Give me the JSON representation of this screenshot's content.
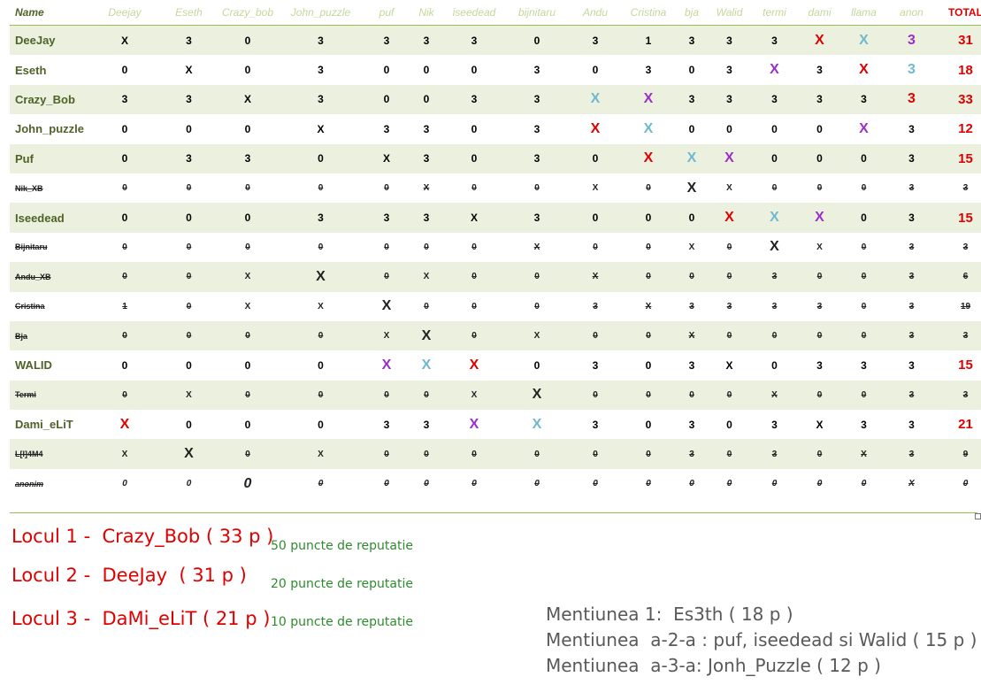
{
  "table": {
    "headers": [
      "Name",
      "Deejay",
      "Eseth",
      "Crazy_bob",
      "John_puzzle",
      "puf",
      "Nik",
      "iseedead",
      "bijnitaru",
      "Andu",
      "Cristina",
      "bja",
      "Walid",
      "termi",
      "dami",
      "llama",
      "anon",
      "TOTAL"
    ],
    "rows": [
      {
        "name": "DeeJay",
        "elim": false,
        "cells": [
          "X",
          "3",
          "0",
          "3",
          "3",
          "3",
          "3",
          "0",
          "3",
          "1",
          "3",
          "3",
          "3",
          "X",
          "X",
          "3"
        ],
        "colors": [
          "",
          "",
          "",
          "",
          "",
          "",
          "",
          "",
          "",
          "",
          "",
          "",
          "",
          "red",
          "teal",
          "purple"
        ],
        "total": "31"
      },
      {
        "name": "Eseth",
        "elim": false,
        "cells": [
          "0",
          "X",
          "0",
          "3",
          "0",
          "0",
          "0",
          "3",
          "0",
          "3",
          "0",
          "3",
          "X",
          "3",
          "X",
          "3"
        ],
        "colors": [
          "",
          "",
          "",
          "",
          "",
          "",
          "",
          "",
          "",
          "",
          "",
          "",
          "purple",
          "",
          "red",
          "teal"
        ],
        "total": "18"
      },
      {
        "name": "Crazy_Bob",
        "elim": false,
        "cells": [
          "3",
          "3",
          "X",
          "3",
          "0",
          "0",
          "3",
          "3",
          "X",
          "X",
          "3",
          "3",
          "3",
          "3",
          "3",
          "3"
        ],
        "colors": [
          "",
          "",
          "",
          "",
          "",
          "",
          "",
          "",
          "teal",
          "purple",
          "",
          "",
          "",
          "",
          "",
          "red"
        ],
        "total": "33"
      },
      {
        "name": "John_puzzle",
        "elim": false,
        "cells": [
          "0",
          "0",
          "0",
          "X",
          "3",
          "3",
          "0",
          "3",
          "X",
          "X",
          "0",
          "0",
          "0",
          "0",
          "X",
          "3"
        ],
        "colors": [
          "",
          "",
          "",
          "",
          "",
          "",
          "",
          "",
          "red",
          "teal",
          "",
          "",
          "",
          "",
          "purple",
          ""
        ],
        "total": "12"
      },
      {
        "name": "Puf",
        "elim": false,
        "cells": [
          "0",
          "3",
          "3",
          "0",
          "X",
          "3",
          "0",
          "3",
          "0",
          "X",
          "X",
          "X",
          "0",
          "0",
          "0",
          "3"
        ],
        "colors": [
          "",
          "",
          "",
          "",
          "",
          "",
          "",
          "",
          "",
          "red",
          "teal",
          "purple",
          "",
          "",
          "",
          ""
        ],
        "total": "15"
      },
      {
        "name": "Nik_XB",
        "elim": true,
        "cells": [
          "0",
          "0",
          "0",
          "0",
          "0",
          "X",
          "0",
          "0",
          "X",
          "0",
          "X",
          "X",
          "0",
          "0",
          "0",
          "3"
        ],
        "colors": [
          "",
          "",
          "",
          "",
          "",
          "",
          "",
          "",
          "purple",
          "",
          "red",
          "teal",
          "",
          "",
          "",
          ""
        ],
        "total": "3"
      },
      {
        "name": "Iseedead",
        "elim": false,
        "cells": [
          "0",
          "0",
          "0",
          "3",
          "3",
          "3",
          "X",
          "3",
          "0",
          "0",
          "0",
          "X",
          "X",
          "X",
          "0",
          "3"
        ],
        "colors": [
          "",
          "",
          "",
          "",
          "",
          "",
          "",
          "",
          "",
          "",
          "",
          "red",
          "teal",
          "purple",
          "",
          ""
        ],
        "total": "15"
      },
      {
        "name": "Bijnitaru",
        "elim": true,
        "cells": [
          "0",
          "0",
          "0",
          "0",
          "0",
          "0",
          "0",
          "X",
          "0",
          "0",
          "X",
          "0",
          "X",
          "X",
          "0",
          "3"
        ],
        "colors": [
          "",
          "",
          "",
          "",
          "",
          "",
          "",
          "",
          "",
          "",
          "purple",
          "",
          "red",
          "teal",
          "",
          ""
        ],
        "total": "3"
      },
      {
        "name": "Andu_XB",
        "elim": true,
        "cells": [
          "0",
          "0",
          "X",
          "X",
          "0",
          "X",
          "0",
          "0",
          "X",
          "0",
          "0",
          "0",
          "3",
          "0",
          "0",
          "3"
        ],
        "colors": [
          "",
          "",
          "teal",
          "red",
          "",
          "purple",
          "",
          "",
          "",
          "",
          "",
          "",
          "",
          "",
          "",
          ""
        ],
        "total": "6"
      },
      {
        "name": "Cristina",
        "elim": true,
        "cells": [
          "1",
          "0",
          "X",
          "X",
          "X",
          "0",
          "0",
          "0",
          "3",
          "X",
          "3",
          "3",
          "3",
          "3",
          "0",
          "3"
        ],
        "colors": [
          "",
          "",
          "purple",
          "teal",
          "red",
          "",
          "",
          "",
          "",
          "",
          "",
          "",
          "",
          "",
          "",
          ""
        ],
        "total": "19"
      },
      {
        "name": "Bja",
        "elim": true,
        "cells": [
          "0",
          "0",
          "0",
          "0",
          "X",
          "X",
          "0",
          "X",
          "0",
          "0",
          "X",
          "0",
          "0",
          "0",
          "0",
          "3"
        ],
        "colors": [
          "",
          "",
          "",
          "",
          "teal",
          "red",
          "",
          "purple",
          "",
          "",
          "",
          "",
          "",
          "",
          "",
          ""
        ],
        "total": "3"
      },
      {
        "name": "WALID",
        "elim": false,
        "cells": [
          "0",
          "0",
          "0",
          "0",
          "X",
          "X",
          "X",
          "0",
          "3",
          "0",
          "3",
          "X",
          "0",
          "3",
          "3",
          "3"
        ],
        "colors": [
          "",
          "",
          "",
          "",
          "purple",
          "teal",
          "red",
          "",
          "",
          "",
          "",
          "",
          "",
          "",
          "",
          ""
        ],
        "total": "15"
      },
      {
        "name": "Termi",
        "elim": true,
        "cells": [
          "0",
          "X",
          "0",
          "0",
          "0",
          "0",
          "X",
          "X",
          "0",
          "0",
          "0",
          "0",
          "X",
          "0",
          "0",
          "3"
        ],
        "colors": [
          "",
          "purple",
          "",
          "",
          "",
          "",
          "teal",
          "red",
          "",
          "",
          "",
          "",
          "",
          "",
          "",
          ""
        ],
        "total": "3"
      },
      {
        "name": "Dami_eLiT",
        "elim": false,
        "cells": [
          "X",
          "0",
          "0",
          "0",
          "3",
          "3",
          "X",
          "X",
          "3",
          "0",
          "3",
          "0",
          "3",
          "X",
          "3",
          "3"
        ],
        "colors": [
          "red",
          "",
          "",
          "",
          "",
          "",
          "purple",
          "teal",
          "",
          "",
          "",
          "",
          "",
          "",
          "",
          ""
        ],
        "total": "21"
      },
      {
        "name": "L[I]4M4",
        "elim": true,
        "cells": [
          "X",
          "X",
          "0",
          "X",
          "0",
          "0",
          "0",
          "0",
          "0",
          "0",
          "3",
          "0",
          "3",
          "0",
          "X",
          "3"
        ],
        "colors": [
          "teal",
          "red",
          "",
          "purple",
          "",
          "",
          "",
          "",
          "",
          "",
          "",
          "",
          "",
          "",
          "",
          ""
        ],
        "total": "9"
      },
      {
        "name": "anonim",
        "elim": true,
        "cells": [
          "0",
          "0",
          "0",
          "0",
          "0",
          "0",
          "0",
          "0",
          "0",
          "0",
          "0",
          "0",
          "0",
          "0",
          "0",
          "X"
        ],
        "colors": [
          "purple",
          "teal",
          "red",
          "",
          "",
          "",
          "",
          "",
          "",
          "",
          "",
          "",
          "",
          "",
          "",
          ""
        ],
        "total": "0"
      }
    ]
  },
  "winners": [
    {
      "text": "Locul 1 -  Crazy_Bob ( 33 p )",
      "reward": "50 puncte de reputatie"
    },
    {
      "text": "Locul 2 -  DeeJay  ( 31 p )",
      "reward": "20 puncte de reputatie"
    },
    {
      "text": "Locul 3 -  DaMi_eLiT ( 21 p )",
      "reward": "10 puncte de reputatie"
    }
  ],
  "mentions": [
    "Mentiunea 1:  Es3th ( 18 p )",
    "Mentiunea  a-2-a : puf, iseedead si Walid ( 15 p )",
    "Mentiunea  a-3-a: Jonh_Puzzle ( 12 p )"
  ],
  "colors": {
    "red": "#e00000",
    "purple": "#9b2fc7",
    "teal": "#6fb8cf",
    "green_text": "#4f6228",
    "shade": "#ebf1de"
  }
}
